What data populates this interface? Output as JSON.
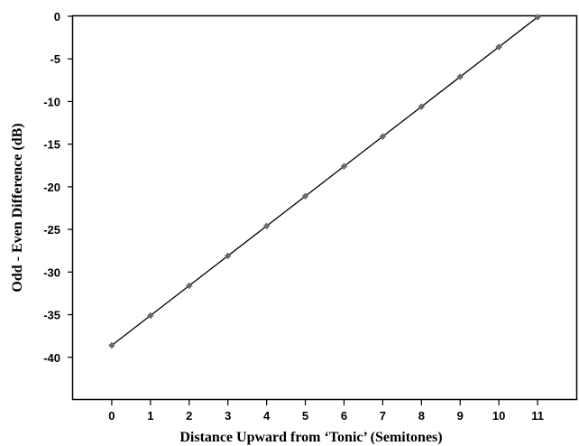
{
  "chart_data": {
    "type": "scatter",
    "title": "",
    "xlabel": "Distance Upward from ‘Tonic’ (Semitones)",
    "ylabel": "Odd - Even Difference (dB)",
    "xlim": [
      -1,
      12
    ],
    "ylim": [
      -45,
      0
    ],
    "x_ticks": [
      0,
      1,
      2,
      3,
      4,
      5,
      6,
      7,
      8,
      9,
      10,
      11
    ],
    "y_ticks": [
      0,
      -5,
      -10,
      -15,
      -20,
      -25,
      -30,
      -35,
      -40
    ],
    "grid": false,
    "legend": "none",
    "series": [
      {
        "x": [
          0,
          1,
          2,
          3,
          4,
          5,
          6,
          7,
          8,
          9,
          10,
          11
        ],
        "y": [
          -38.6,
          -35.1,
          -31.6,
          -28.1,
          -24.6,
          -21.1,
          -17.6,
          -14.1,
          -10.6,
          -7.1,
          -3.6,
          -0.1
        ],
        "marker_color": "#6b6b6b"
      }
    ],
    "trendline": {
      "from": [
        0,
        -38.6
      ],
      "to": [
        11,
        -0.1
      ],
      "color": "#000000"
    }
  }
}
